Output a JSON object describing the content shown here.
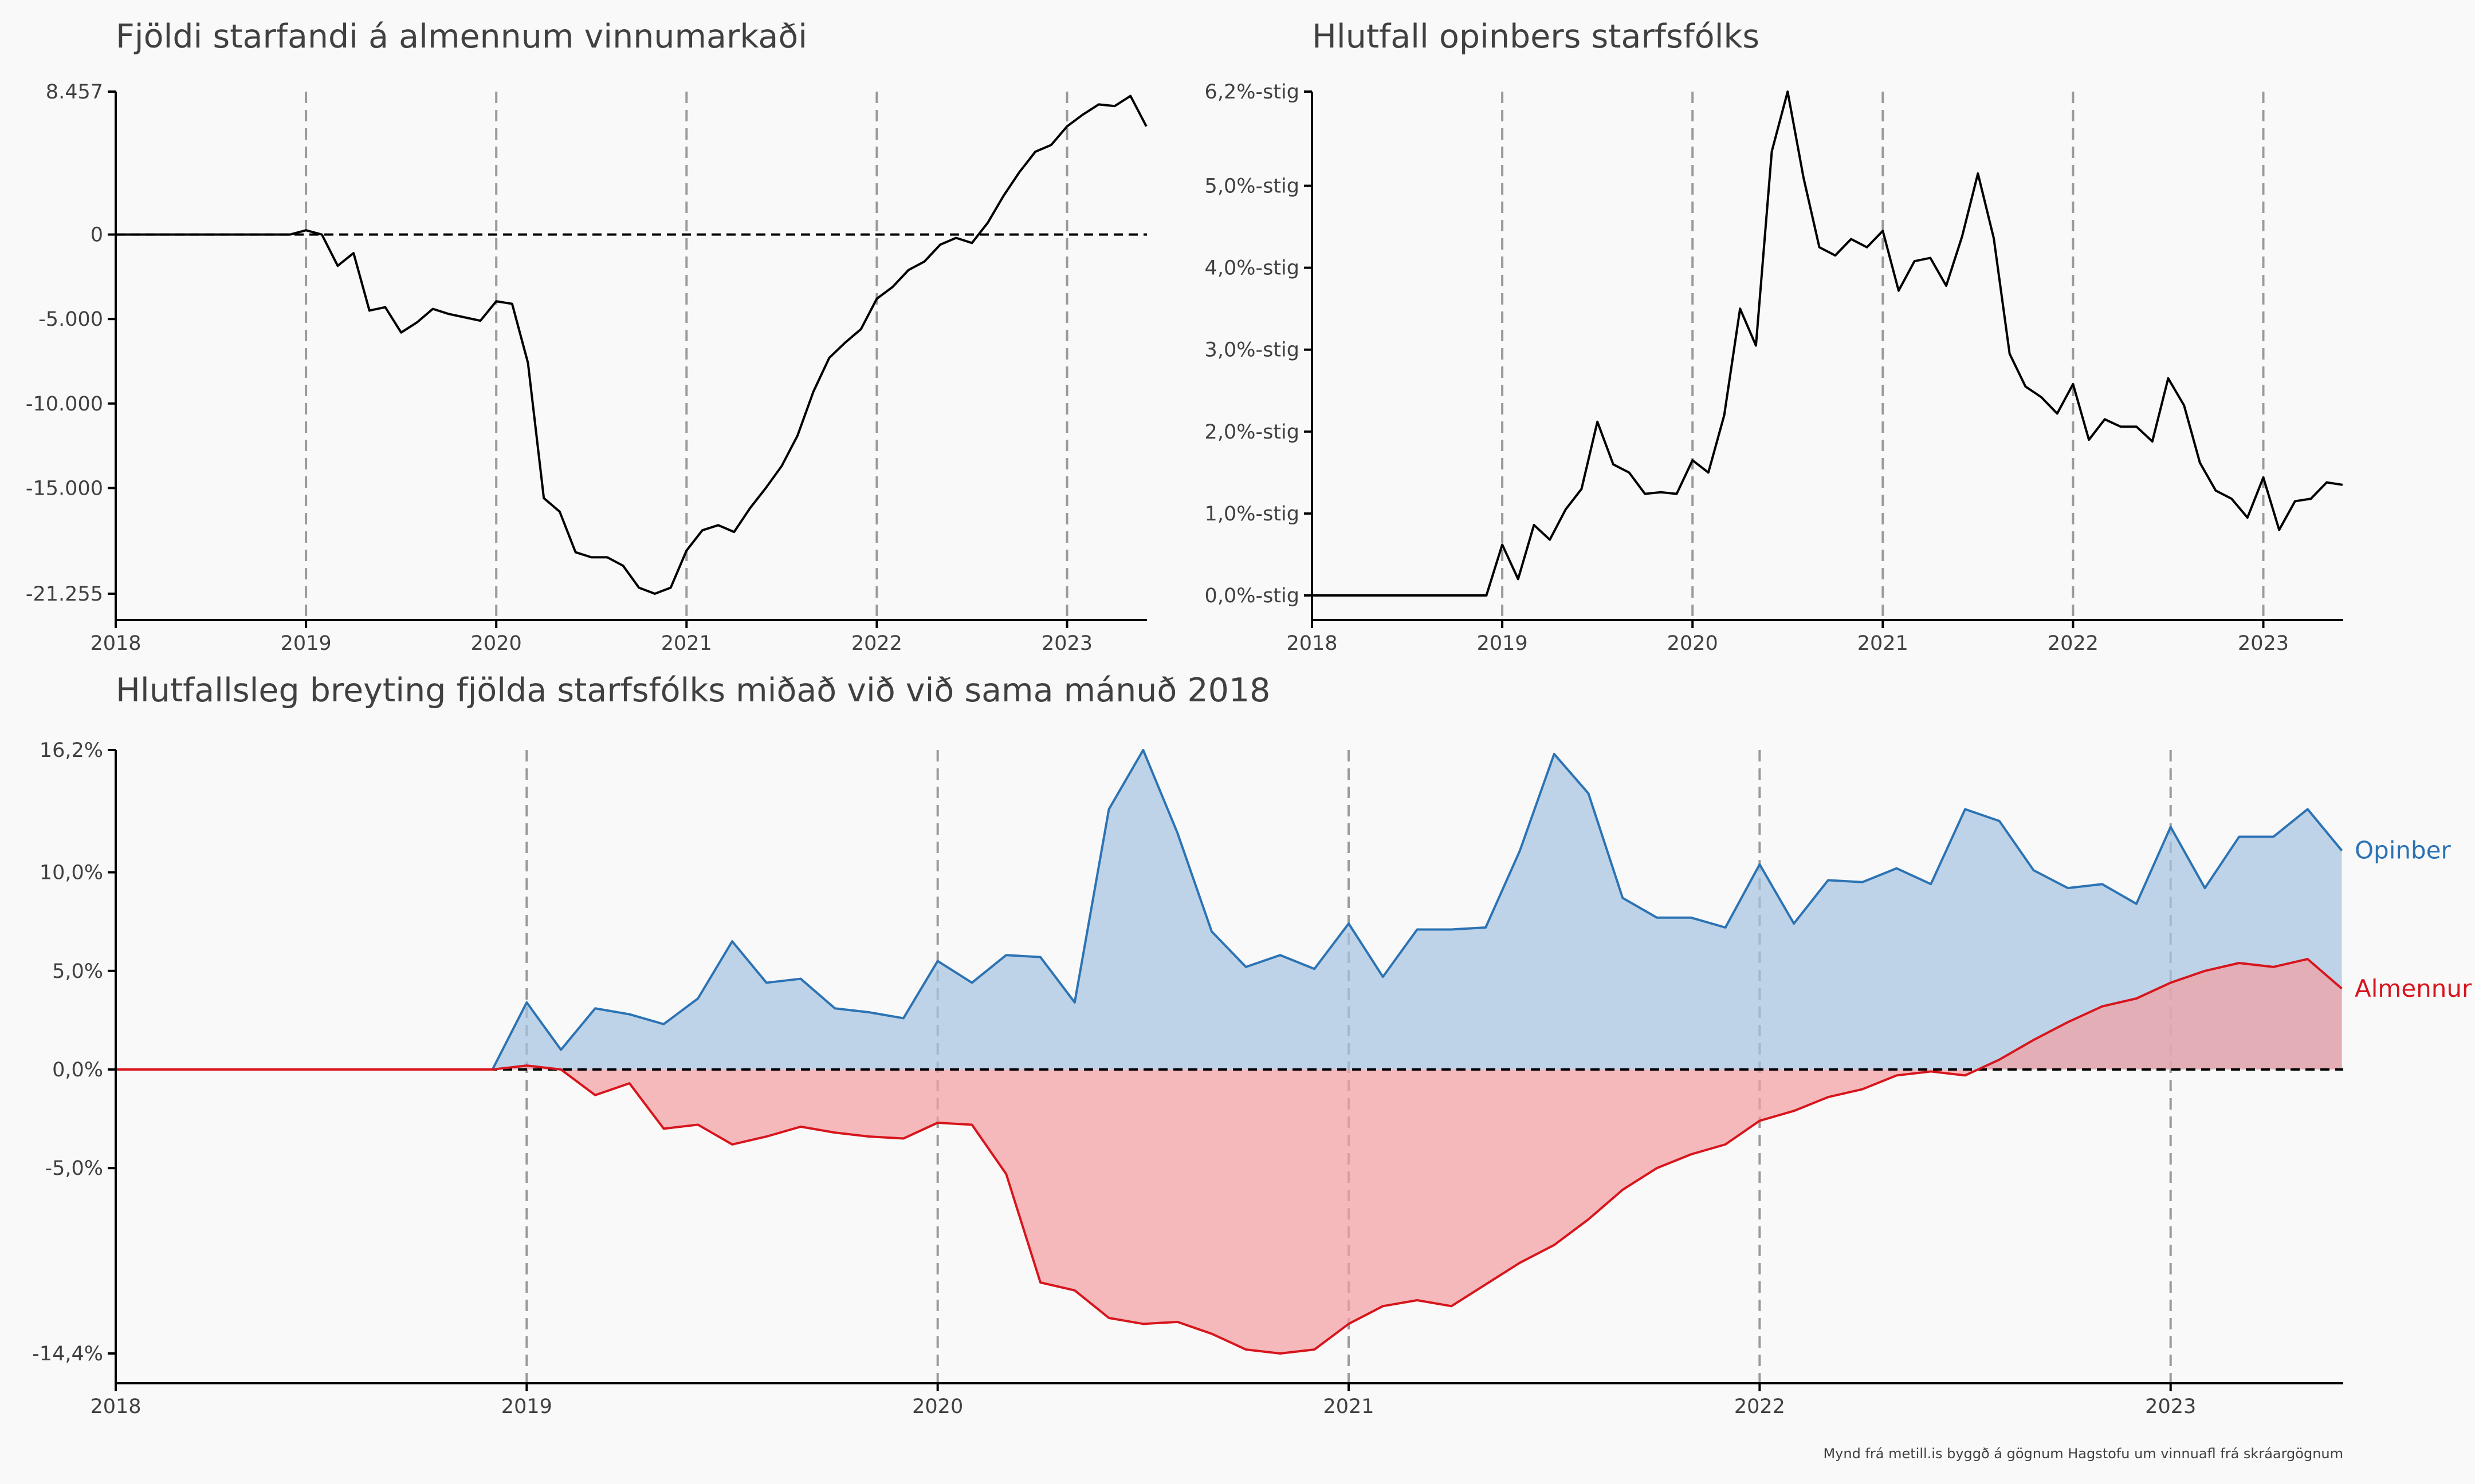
{
  "caption": "Mynd frá metill.is byggð á gögnum Hagstofu um vinnuafl frá skráargögnum",
  "colors": {
    "public": "#2c73b4",
    "public_fill": "#a6c4df",
    "private": "#d7151c",
    "private_fill": "#f2a0a4",
    "line": "#000000"
  },
  "chart_data": [
    {
      "type": "line",
      "title": "Fjöldi starfandi á almennum vinnumarkaði",
      "x_tick_labels": [
        "2018",
        "2019",
        "2020",
        "2021",
        "2022",
        "2023"
      ],
      "y_tick_labels": [
        "8.457",
        "0",
        "-5.000",
        "-10.000",
        "-15.000",
        "-21.255"
      ],
      "y_ticks": [
        8457,
        0,
        -5000,
        -10000,
        -15000,
        -21255
      ],
      "ylim": [
        -21255,
        8457
      ],
      "xlim": [
        2018.0,
        2023.42
      ],
      "x_start": 2018.0,
      "x_step_months": 1,
      "values": [
        0,
        0,
        0,
        0,
        0,
        0,
        0,
        0,
        0,
        0,
        0,
        0,
        250,
        0,
        -1850,
        -1100,
        -4500,
        -4300,
        -5800,
        -5200,
        -4400,
        -4700,
        -4900,
        -5100,
        -3950,
        -4100,
        -7600,
        -15600,
        -16400,
        -18800,
        -19100,
        -19100,
        -19600,
        -20900,
        -21255,
        -20900,
        -18700,
        -17500,
        -17200,
        -17600,
        -16200,
        -15000,
        -13700,
        -11900,
        -9300,
        -7300,
        -6400,
        -5600,
        -3800,
        -3100,
        -2100,
        -1600,
        -600,
        -200,
        -500,
        700,
        2300,
        3700,
        4900,
        5300,
        6400,
        7100,
        7700,
        7600,
        8200,
        6400
      ],
      "grid": false,
      "vlines": [
        2019,
        2020,
        2021,
        2022,
        2023
      ],
      "hline": 0
    },
    {
      "type": "line",
      "title": "Hlutfall opinbers starfsfólks",
      "x_tick_labels": [
        "2018",
        "2019",
        "2020",
        "2021",
        "2022",
        "2023"
      ],
      "y_tick_labels": [
        "6,2%-stig",
        "5,0%-stig",
        "4,0%-stig",
        "3,0%-stig",
        "2,0%-stig",
        "1,0%-stig",
        "0,0%-stig"
      ],
      "y_ticks": [
        6.15,
        5.0,
        4.0,
        3.0,
        2.0,
        1.0,
        0.0
      ],
      "ylim": [
        -0.3,
        6.15
      ],
      "xlim": [
        2018.0,
        2023.42
      ],
      "x_start": 2018.0,
      "x_step_months": 1,
      "values": [
        0,
        0,
        0,
        0,
        0,
        0,
        0,
        0,
        0,
        0,
        0,
        0,
        0.62,
        0.2,
        0.86,
        0.68,
        1.05,
        1.3,
        2.12,
        1.6,
        1.5,
        1.24,
        1.26,
        1.24,
        1.65,
        1.5,
        2.2,
        3.5,
        3.05,
        5.42,
        6.15,
        5.1,
        4.25,
        4.15,
        4.35,
        4.25,
        4.45,
        3.72,
        4.08,
        4.12,
        3.78,
        4.38,
        5.15,
        4.36,
        2.95,
        2.55,
        2.42,
        2.22,
        2.58,
        1.9,
        2.15,
        2.06,
        2.06,
        1.88,
        2.65,
        2.32,
        1.62,
        1.28,
        1.18,
        0.95,
        1.44,
        0.8,
        1.15,
        1.18,
        1.38,
        1.35
      ],
      "grid": false,
      "vlines": [
        2019,
        2020,
        2021,
        2022,
        2023
      ]
    },
    {
      "type": "area",
      "title": "Hlutfallsleg breyting fjölda starfsfólks miðað við við sama mánuð 2018",
      "x_tick_labels": [
        "2018",
        "2019",
        "2020",
        "2021",
        "2022",
        "2023"
      ],
      "y_tick_labels": [
        "16,2%",
        "10,0%",
        "5,0%",
        "0,0%",
        "-5,0%",
        "-14,4%"
      ],
      "y_ticks": [
        16.2,
        10.0,
        5.0,
        0.0,
        -5.0,
        -14.4
      ],
      "ylim": [
        -15.9,
        16.2
      ],
      "xlim": [
        2018.0,
        2023.42
      ],
      "x_start": 2018.0,
      "x_step_months": 1,
      "grid": false,
      "vlines": [
        2019,
        2020,
        2021,
        2022,
        2023
      ],
      "hline": 0,
      "series": [
        {
          "name": "Opinber",
          "values": [
            0,
            0,
            0,
            0,
            0,
            0,
            0,
            0,
            0,
            0,
            0,
            0,
            3.4,
            1.0,
            3.1,
            2.8,
            2.3,
            3.6,
            6.5,
            4.4,
            4.6,
            3.1,
            2.9,
            2.6,
            5.5,
            4.4,
            5.8,
            5.7,
            3.4,
            13.2,
            16.2,
            12.0,
            7.0,
            5.2,
            5.8,
            5.1,
            7.4,
            4.7,
            7.1,
            7.1,
            7.2,
            11.1,
            16.0,
            14.0,
            8.7,
            7.7,
            7.7,
            7.2,
            10.4,
            7.4,
            9.6,
            9.5,
            10.2,
            9.4,
            13.2,
            12.6,
            10.1,
            9.2,
            9.4,
            8.4,
            12.3,
            9.2,
            11.8,
            11.8,
            13.2,
            11.1
          ]
        },
        {
          "name": "Almennur",
          "values": [
            0,
            0,
            0,
            0,
            0,
            0,
            0,
            0,
            0,
            0,
            0,
            0,
            0.2,
            0,
            -1.3,
            -0.7,
            -3.0,
            -2.8,
            -3.8,
            -3.4,
            -2.9,
            -3.2,
            -3.4,
            -3.5,
            -2.7,
            -2.8,
            -5.3,
            -10.8,
            -11.2,
            -12.6,
            -12.9,
            -12.8,
            -13.4,
            -14.2,
            -14.4,
            -14.2,
            -12.9,
            -12.0,
            -11.7,
            -12.0,
            -10.9,
            -9.8,
            -8.9,
            -7.6,
            -6.1,
            -5.0,
            -4.3,
            -3.8,
            -2.6,
            -2.1,
            -1.4,
            -1.0,
            -0.3,
            -0.1,
            -0.3,
            0.5,
            1.5,
            2.4,
            3.2,
            3.6,
            4.4,
            5.0,
            5.4,
            5.2,
            5.6,
            4.1
          ]
        }
      ]
    }
  ]
}
